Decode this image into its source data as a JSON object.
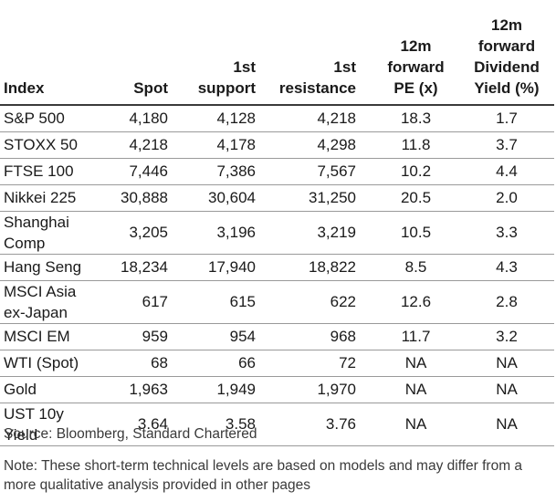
{
  "headers": {
    "index": "Index",
    "spot": "Spot",
    "support_1": "1st",
    "support_2": "support",
    "resistance_1": "1st",
    "resistance_2": "resistance",
    "pe_1": "12m",
    "pe_2": "forward",
    "pe_3": "PE (x)",
    "dy_1": "12m forward",
    "dy_2": "Dividend",
    "dy_3": "Yield (%)"
  },
  "rows": [
    {
      "index": [
        "S&P 500"
      ],
      "spot": "4,180",
      "support": "4,128",
      "resistance": "4,218",
      "pe": "18.3",
      "dy": "1.7"
    },
    {
      "index": [
        "STOXX 50"
      ],
      "spot": "4,218",
      "support": "4,178",
      "resistance": "4,298",
      "pe": "11.8",
      "dy": "3.7"
    },
    {
      "index": [
        "FTSE 100"
      ],
      "spot": "7,446",
      "support": "7,386",
      "resistance": "7,567",
      "pe": "10.2",
      "dy": "4.4"
    },
    {
      "index": [
        "Nikkei 225"
      ],
      "spot": "30,888",
      "support": "30,604",
      "resistance": "31,250",
      "pe": "20.5",
      "dy": "2.0"
    },
    {
      "index": [
        "Shanghai",
        "Comp"
      ],
      "spot": "3,205",
      "support": "3,196",
      "resistance": "3,219",
      "pe": "10.5",
      "dy": "3.3"
    },
    {
      "index": [
        "Hang Seng"
      ],
      "spot": "18,234",
      "support": "17,940",
      "resistance": "18,822",
      "pe": "8.5",
      "dy": "4.3"
    },
    {
      "index": [
        "MSCI Asia",
        "ex-Japan"
      ],
      "spot": "617",
      "support": "615",
      "resistance": "622",
      "pe": "12.6",
      "dy": "2.8"
    },
    {
      "index": [
        "MSCI EM"
      ],
      "spot": "959",
      "support": "954",
      "resistance": "968",
      "pe": "11.7",
      "dy": "3.2"
    },
    {
      "index": [
        "WTI (Spot)"
      ],
      "spot": "68",
      "support": "66",
      "resistance": "72",
      "pe": "NA",
      "dy": "NA"
    },
    {
      "index": [
        "Gold"
      ],
      "spot": "1,963",
      "support": "1,949",
      "resistance": "1,970",
      "pe": "NA",
      "dy": "NA"
    },
    {
      "index": [
        "UST 10y",
        "Yield"
      ],
      "spot": "3.64",
      "support": "3.58",
      "resistance": "3.76",
      "pe": "NA",
      "dy": "NA"
    }
  ],
  "source": "Source: Bloomberg, Standard Chartered",
  "note": "Note: These short-term technical levels are based on models and may differ from a more qualitative analysis provided in other pages"
}
